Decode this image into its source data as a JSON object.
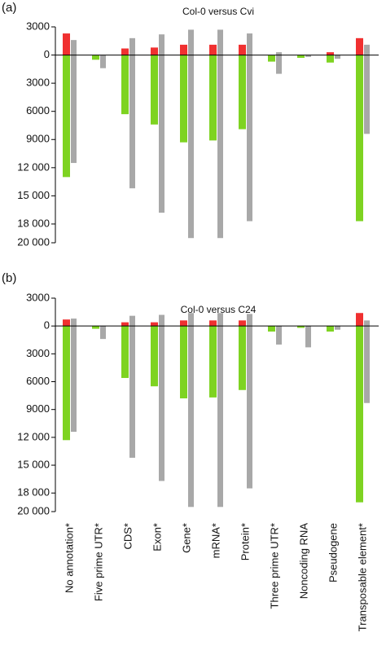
{
  "chart_data": [
    {
      "type": "bar",
      "panel_label": "(a)",
      "title": "Col-0 versus Cvi",
      "ylim": [
        -20000,
        3000
      ],
      "yticks": [
        3000,
        0,
        {
          "value": -3000,
          "label": "3000"
        },
        {
          "value": -6000,
          "label": "6000"
        },
        {
          "value": -9000,
          "label": "9000"
        },
        {
          "value": -12000,
          "label": "12 000"
        },
        {
          "value": -15000,
          "label": "15 000"
        },
        {
          "value": -18000,
          "label": "18 000"
        },
        {
          "value": -20000,
          "label": "20 000"
        }
      ],
      "series": [
        {
          "color": "#f03030",
          "values": [
            2300,
            0,
            700,
            800,
            1100,
            1100,
            1100,
            0,
            0,
            300,
            1800
          ]
        },
        {
          "color": "#7ed321",
          "values": [
            -13000,
            -500,
            -6300,
            -7400,
            -9300,
            -9100,
            -7900,
            -700,
            -300,
            -800,
            -17700
          ]
        },
        {
          "color": "#a8a8a8",
          "values": [
            1600,
            0,
            1800,
            2200,
            2700,
            2700,
            2300,
            300,
            0,
            0,
            1100
          ]
        },
        {
          "color": "#a8a8a8",
          "values": [
            -11500,
            -1400,
            -14200,
            -16800,
            -19500,
            -19500,
            -17700,
            -2000,
            -200,
            -400,
            -8400
          ]
        }
      ]
    },
    {
      "type": "bar",
      "panel_label": "(b)",
      "title": "Col-0 versus C24",
      "categories": [
        "No annotation*",
        "Five prime UTR*",
        "CDS*",
        "Exon*",
        "Gene*",
        "mRNA*",
        "Protein*",
        "Three prime UTR*",
        "Noncoding RNA",
        "Pseudogene",
        "Transposable element*"
      ],
      "ylim": [
        -20000,
        3000
      ],
      "yticks": [
        3000,
        0,
        {
          "value": -3000,
          "label": "3000"
        },
        {
          "value": -6000,
          "label": "6000"
        },
        {
          "value": -9000,
          "label": "9000"
        },
        {
          "value": -12000,
          "label": "12 000"
        },
        {
          "value": -15000,
          "label": "15 000"
        },
        {
          "value": -18000,
          "label": "18 000"
        },
        {
          "value": -20000,
          "label": "20 000"
        }
      ],
      "series": [
        {
          "color": "#f03030",
          "values": [
            700,
            0,
            400,
            400,
            600,
            600,
            600,
            0,
            0,
            0,
            1400
          ]
        },
        {
          "color": "#7ed321",
          "values": [
            -12300,
            -300,
            -5600,
            -6500,
            -7800,
            -7700,
            -6900,
            -600,
            -200,
            -600,
            -19000
          ]
        },
        {
          "color": "#a8a8a8",
          "values": [
            800,
            0,
            1100,
            1200,
            1400,
            1400,
            1300,
            0,
            0,
            0,
            600
          ]
        },
        {
          "color": "#a8a8a8",
          "values": [
            -11400,
            -1400,
            -14200,
            -16700,
            -19500,
            -19500,
            -17500,
            -2000,
            -2300,
            -400,
            -8300
          ]
        }
      ]
    }
  ]
}
